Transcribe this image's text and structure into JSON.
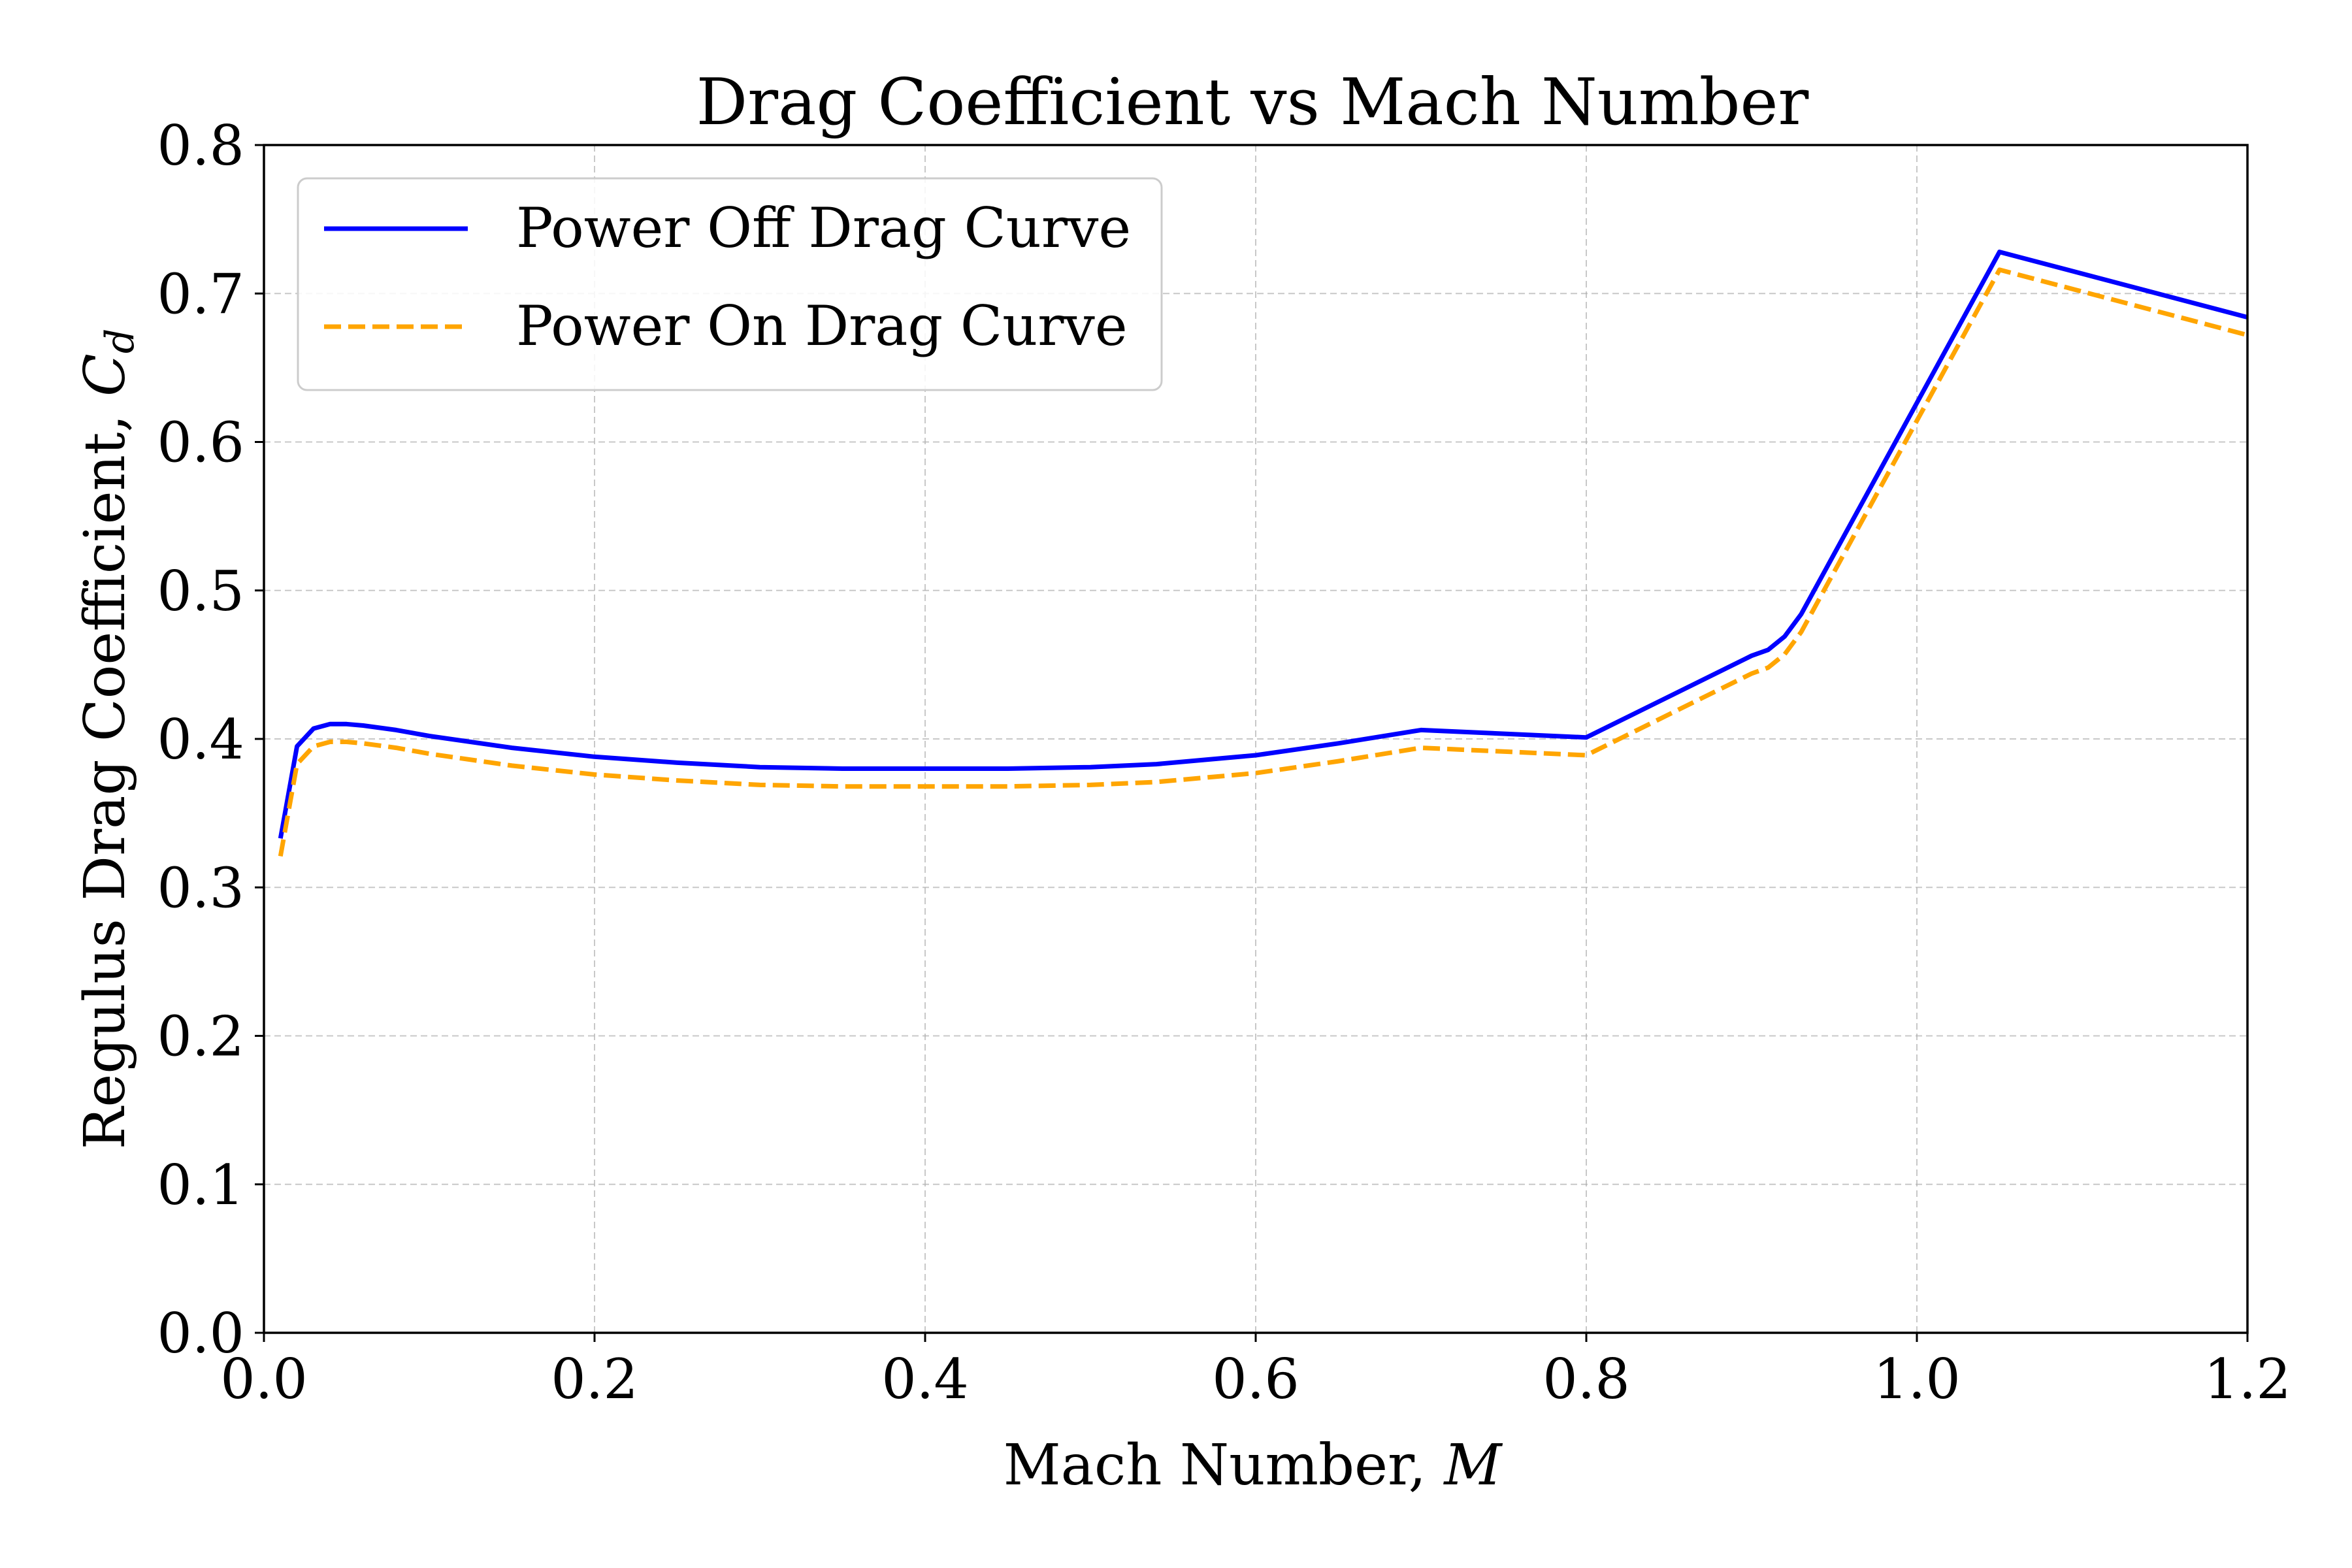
{
  "chart_data": {
    "type": "line",
    "title": "Drag Coefficient vs Mach Number",
    "xlabel": {
      "text": "Mach Number, ",
      "symbol": "M"
    },
    "ylabel": {
      "text": "Regulus Drag Coefficient, ",
      "symbol": "C",
      "subscript": "d"
    },
    "xlim": [
      0.0,
      1.2
    ],
    "ylim": [
      0.0,
      0.8
    ],
    "x_ticks": [
      "0.0",
      "0.2",
      "0.4",
      "0.6",
      "0.8",
      "1.0",
      "1.2"
    ],
    "y_ticks": [
      "0.0",
      "0.1",
      "0.2",
      "0.3",
      "0.4",
      "0.5",
      "0.6",
      "0.7",
      "0.8"
    ],
    "grid": true,
    "legend_position": "upper-left",
    "series": [
      {
        "name": "Power Off Drag Curve",
        "color": "#0000ff",
        "style": "solid",
        "points": [
          [
            0.01,
            0.333
          ],
          [
            0.02,
            0.395
          ],
          [
            0.03,
            0.407
          ],
          [
            0.04,
            0.41
          ],
          [
            0.05,
            0.41
          ],
          [
            0.06,
            0.409
          ],
          [
            0.08,
            0.406
          ],
          [
            0.1,
            0.402
          ],
          [
            0.15,
            0.394
          ],
          [
            0.2,
            0.388
          ],
          [
            0.25,
            0.384
          ],
          [
            0.3,
            0.381
          ],
          [
            0.35,
            0.38
          ],
          [
            0.4,
            0.38
          ],
          [
            0.45,
            0.38
          ],
          [
            0.5,
            0.381
          ],
          [
            0.54,
            0.383
          ],
          [
            0.6,
            0.389
          ],
          [
            0.65,
            0.397
          ],
          [
            0.7,
            0.406
          ],
          [
            0.8,
            0.401
          ],
          [
            0.9,
            0.456
          ],
          [
            0.91,
            0.46
          ],
          [
            0.92,
            0.469
          ],
          [
            0.93,
            0.484
          ],
          [
            1.05,
            0.728
          ],
          [
            1.2,
            0.684
          ]
        ]
      },
      {
        "name": "Power On Drag Curve",
        "color": "#ffa500",
        "style": "dashed",
        "points": [
          [
            0.01,
            0.321
          ],
          [
            0.02,
            0.383
          ],
          [
            0.03,
            0.395
          ],
          [
            0.04,
            0.398
          ],
          [
            0.05,
            0.398
          ],
          [
            0.06,
            0.397
          ],
          [
            0.08,
            0.394
          ],
          [
            0.1,
            0.39
          ],
          [
            0.15,
            0.382
          ],
          [
            0.2,
            0.376
          ],
          [
            0.25,
            0.372
          ],
          [
            0.3,
            0.369
          ],
          [
            0.35,
            0.368
          ],
          [
            0.4,
            0.368
          ],
          [
            0.45,
            0.368
          ],
          [
            0.5,
            0.369
          ],
          [
            0.54,
            0.371
          ],
          [
            0.6,
            0.377
          ],
          [
            0.65,
            0.385
          ],
          [
            0.7,
            0.394
          ],
          [
            0.8,
            0.389
          ],
          [
            0.9,
            0.444
          ],
          [
            0.91,
            0.448
          ],
          [
            0.92,
            0.457
          ],
          [
            0.93,
            0.472
          ],
          [
            1.05,
            0.716
          ],
          [
            1.2,
            0.672
          ]
        ]
      }
    ]
  }
}
